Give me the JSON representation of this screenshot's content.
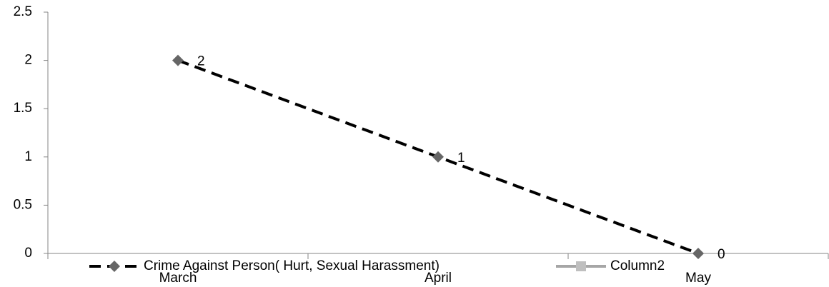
{
  "chart_data": {
    "type": "line",
    "categories": [
      "March",
      "April",
      "May"
    ],
    "series": [
      {
        "name": "Crime Against Person( Hurt, Sexual Harassment)",
        "color": "#000000",
        "marker_color": "#666666",
        "marker": "diamond",
        "dash": true,
        "values": [
          2,
          1,
          0
        ]
      },
      {
        "name": "Column2",
        "color": "#a6a6a6",
        "marker_color": "#bfbfbf",
        "marker": "square",
        "dash": false,
        "values": [
          null,
          null,
          null
        ]
      }
    ],
    "ylim": [
      0,
      2.5
    ],
    "yticks": [
      0,
      0.5,
      1,
      1.5,
      2,
      2.5
    ],
    "grid": false,
    "legend": "bottom",
    "data_labels": true
  }
}
